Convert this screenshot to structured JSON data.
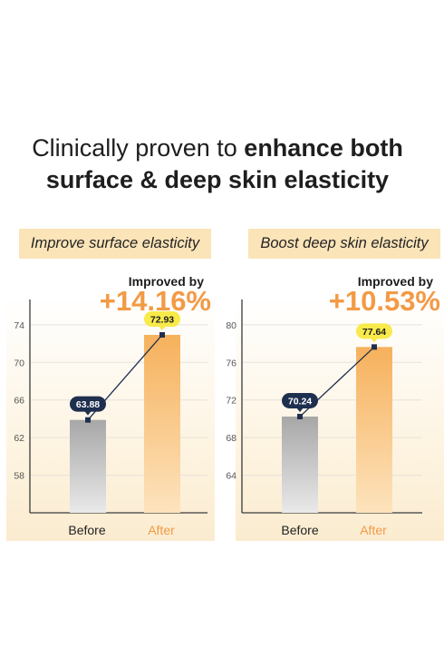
{
  "headline": {
    "line1": "Clinically proven to ",
    "line1_bold": "enhance both",
    "line2": "surface & deep skin elasticity"
  },
  "chart_data": [
    {
      "type": "bar",
      "title": "Improve surface elasticity",
      "improved_label": "Improved by",
      "improved_value": "+14.16%",
      "categories": [
        "Before",
        "After"
      ],
      "values": [
        63.88,
        72.93
      ],
      "value_labels": [
        "63.88",
        "72.93"
      ],
      "yticks": [
        58,
        62,
        66,
        70,
        74
      ],
      "ylim": [
        54,
        76.5
      ],
      "colors": {
        "before": "#b9b9b9",
        "after": "#f6b15c",
        "before_label_bg": "#1f2f4f",
        "after_label_bg": "#f8ea4a"
      }
    },
    {
      "type": "bar",
      "title": "Boost deep skin elasticity",
      "improved_label": "Improved by",
      "improved_value": "+10.53%",
      "categories": [
        "Before",
        "After"
      ],
      "values": [
        70.24,
        77.64
      ],
      "value_labels": [
        "70.24",
        "77.64"
      ],
      "yticks": [
        64,
        68,
        72,
        76,
        80
      ],
      "ylim": [
        60,
        82.5
      ],
      "colors": {
        "before": "#b9b9b9",
        "after": "#f6b15c",
        "before_label_bg": "#1f2f4f",
        "after_label_bg": "#f8ea4a"
      }
    }
  ]
}
